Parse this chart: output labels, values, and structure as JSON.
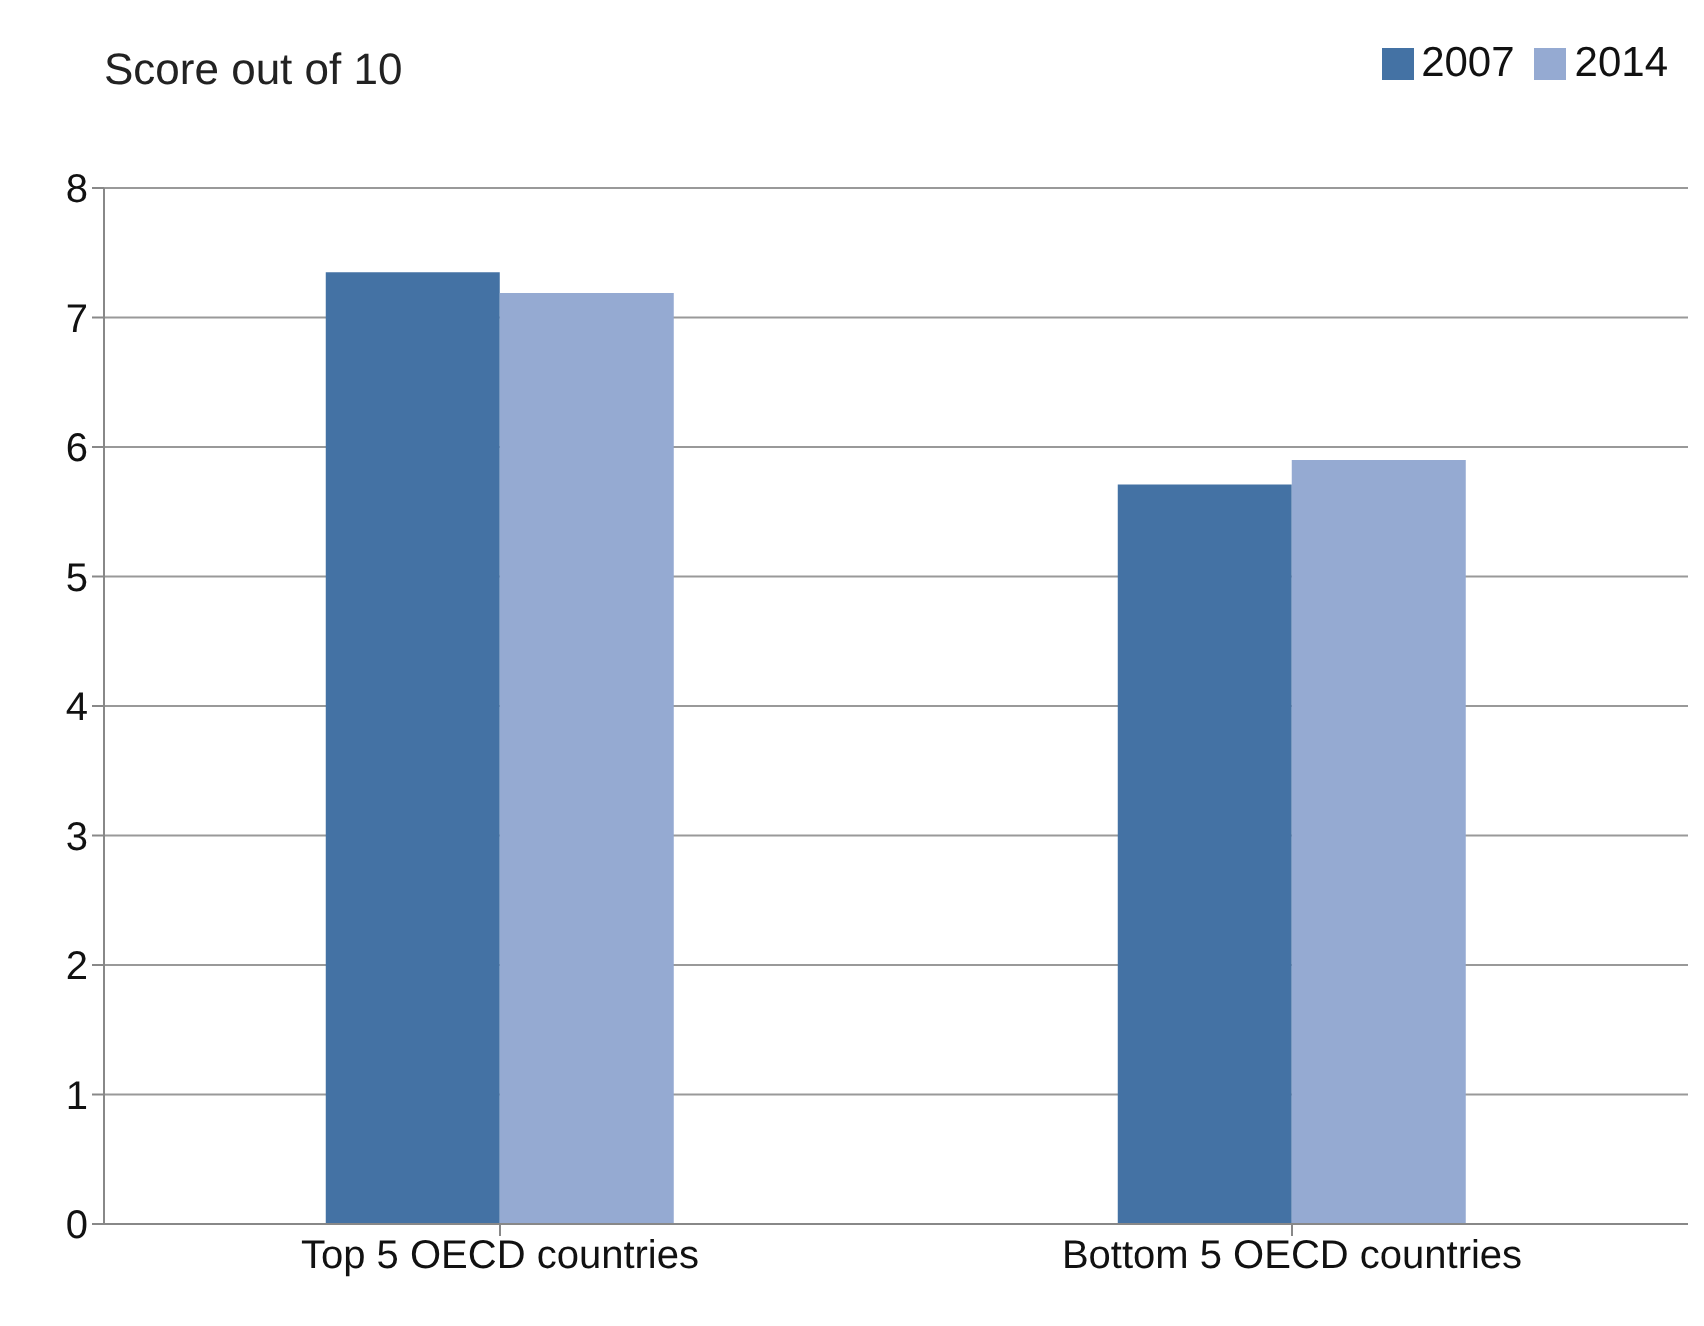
{
  "chart_data": {
    "type": "bar",
    "ylabel": "Score out of 10",
    "categories": [
      "Top 5 OECD countries",
      "Bottom 5 OECD countries"
    ],
    "series": [
      {
        "name": "2007",
        "color": "#4472a4",
        "values": [
          7.35,
          5.71
        ]
      },
      {
        "name": "2014",
        "color": "#95aad2",
        "values": [
          7.19,
          5.9
        ]
      }
    ],
    "ylim": [
      0,
      8
    ],
    "yticks": [
      0,
      1,
      2,
      3,
      4,
      5,
      6,
      7,
      8
    ],
    "grid": "y",
    "legend": "top right"
  }
}
